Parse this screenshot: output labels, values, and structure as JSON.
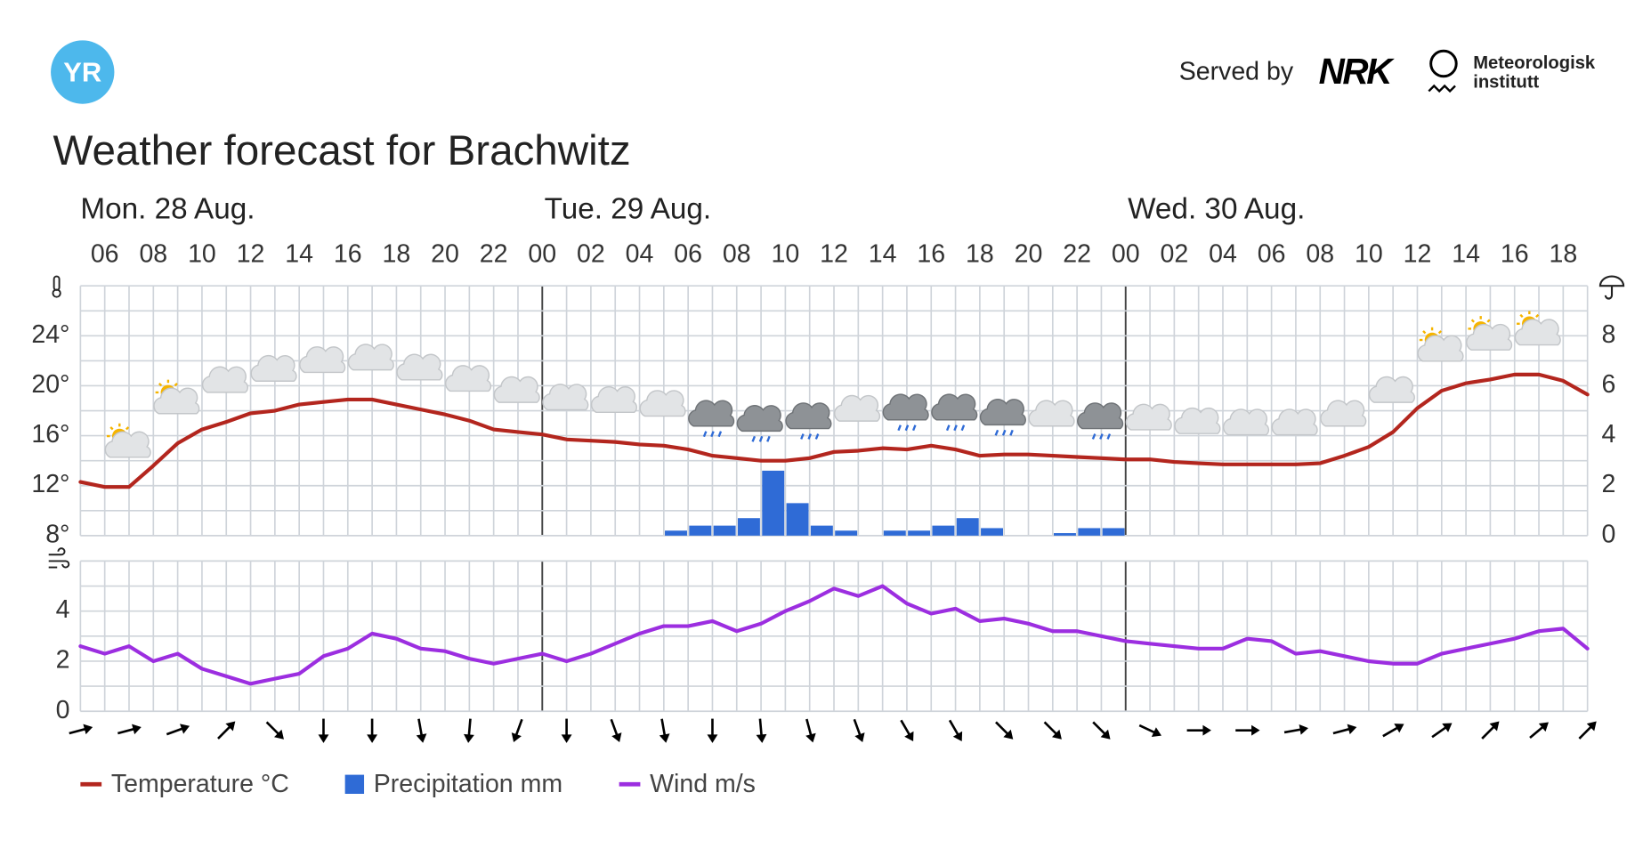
{
  "header": {
    "logo": "YR",
    "served_by": "Served by",
    "nrk_logo": "NRK",
    "met_name": [
      "Meteorologisk",
      "institutt"
    ]
  },
  "chart_data": {
    "type": "line",
    "title": "Weather forecast for Brachwitz",
    "days": [
      "Mon. 28 Aug.",
      "Tue. 29 Aug.",
      "Wed. 30 Aug."
    ],
    "categories": [
      null,
      "06",
      null,
      "08",
      null,
      "10",
      null,
      "12",
      null,
      "14",
      null,
      "16",
      null,
      "18",
      null,
      "20",
      null,
      "22",
      null,
      "00",
      null,
      "02",
      null,
      "04",
      null,
      "06",
      null,
      "08",
      null,
      "10",
      null,
      "12",
      null,
      "14",
      null,
      "16",
      null,
      "18",
      null,
      "20",
      null,
      "22",
      null,
      "00",
      null,
      "02",
      null,
      "04",
      null,
      "06",
      null,
      "08",
      null,
      "10",
      null,
      "12",
      null,
      "14",
      null,
      "16",
      null,
      "18",
      null
    ],
    "series": [
      {
        "name": "Temperature °C",
        "type": "line",
        "axis": "y",
        "color": "#b3261e",
        "values": [
          12.3,
          11.9,
          11.9,
          13.6,
          15.4,
          16.5,
          17.1,
          17.8,
          18,
          18.5,
          18.7,
          18.9,
          18.9,
          18.5,
          18.1,
          17.7,
          17.2,
          16.5,
          16.3,
          16.1,
          15.7,
          15.6,
          15.5,
          15.3,
          15.2,
          14.9,
          14.4,
          14.2,
          14,
          14,
          14.2,
          14.7,
          14.8,
          15,
          14.9,
          15.2,
          14.9,
          14.4,
          14.5,
          14.5,
          14.4,
          14.3,
          14.2,
          14.1,
          14.1,
          13.9,
          13.8,
          13.7,
          13.7,
          13.7,
          13.7,
          13.8,
          14.4,
          15.1,
          16.3,
          18.2,
          19.6,
          20.2,
          20.5,
          20.9,
          20.9,
          20.4,
          19.3
        ]
      },
      {
        "name": "Precipitation mm",
        "type": "bar",
        "axis": "y2",
        "color": "#2f6bd6",
        "values": [
          0,
          0,
          0,
          0,
          0,
          0,
          0,
          0,
          0,
          0,
          0,
          0,
          0,
          0,
          0,
          0,
          0,
          0,
          0,
          0,
          0,
          0,
          0,
          0,
          0.2,
          0.4,
          0.4,
          0.7,
          2.6,
          1.3,
          0.4,
          0.2,
          0,
          0.2,
          0.2,
          0.4,
          0.7,
          0.3,
          0,
          0,
          0.1,
          0.3,
          0.3,
          0,
          0,
          0,
          0,
          0,
          0,
          0,
          0,
          0,
          0,
          0,
          0,
          0,
          0,
          0,
          0,
          0,
          0,
          0,
          null
        ]
      },
      {
        "name": "Wind m/s",
        "type": "line",
        "axis": "y3",
        "color": "#9c2ee0",
        "values": [
          2.6,
          2.3,
          2.6,
          2.0,
          2.3,
          1.7,
          1.4,
          1.1,
          1.3,
          1.5,
          2.2,
          2.5,
          3.1,
          2.9,
          2.5,
          2.4,
          2.1,
          1.9,
          2.1,
          2.3,
          2.0,
          2.3,
          2.7,
          3.1,
          3.4,
          3.4,
          3.6,
          3.2,
          3.5,
          4.0,
          4.4,
          4.9,
          4.6,
          5.0,
          4.3,
          3.9,
          4.1,
          3.6,
          3.7,
          3.5,
          3.2,
          3.2,
          3.0,
          2.8,
          2.7,
          2.6,
          2.5,
          2.5,
          2.9,
          2.8,
          2.3,
          2.4,
          2.2,
          2.0,
          1.9,
          1.9,
          2.3,
          2.5,
          2.7,
          2.9,
          3.2,
          3.3,
          2.5
        ]
      }
    ],
    "wind_direction": [
      75,
      75,
      70,
      45,
      135,
      180,
      180,
      170,
      185,
      200,
      180,
      160,
      170,
      180,
      175,
      165,
      160,
      150,
      150,
      135,
      135,
      135,
      115,
      90,
      90,
      80,
      75,
      60,
      55,
      45,
      50,
      45
    ],
    "ylim": [
      8,
      28
    ],
    "yticks": [
      {
        "value": 8,
        "label": "8°"
      },
      {
        "value": 12,
        "label": "12°"
      },
      {
        "value": 16,
        "label": "16°"
      },
      {
        "value": 20,
        "label": "20°"
      },
      {
        "value": 24,
        "label": "24°"
      }
    ],
    "y2lim": [
      0,
      10
    ],
    "y2ticks": [
      0,
      2,
      4,
      6,
      8
    ],
    "y3lim": [
      0,
      6
    ],
    "y3ticks": [
      0,
      2,
      4
    ],
    "grid": true
  }
}
